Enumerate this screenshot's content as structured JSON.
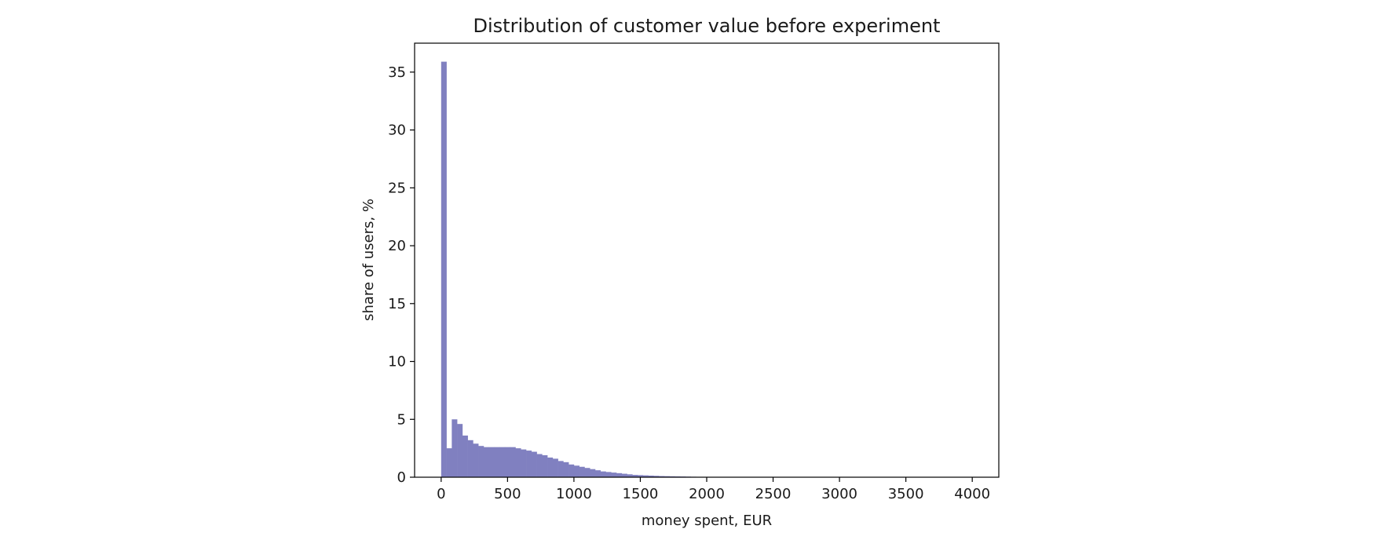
{
  "chart_data": {
    "type": "bar",
    "title": "Distribution of customer value before experiment",
    "xlabel": "money spent, EUR",
    "ylabel": "share of users, %",
    "xlim": [
      -200,
      4200
    ],
    "ylim": [
      0,
      37.5
    ],
    "xticks": [
      0,
      500,
      1000,
      1500,
      2000,
      2500,
      3000,
      3500,
      4000
    ],
    "yticks": [
      0,
      5,
      10,
      15,
      20,
      25,
      30,
      35
    ],
    "grid": false,
    "bin_width": 40,
    "bar_color": "#8080c0",
    "bins_start": [
      0,
      40,
      80,
      120,
      160,
      200,
      240,
      280,
      320,
      360,
      400,
      440,
      480,
      520,
      560,
      600,
      640,
      680,
      720,
      760,
      800,
      840,
      880,
      920,
      960,
      1000,
      1040,
      1080,
      1120,
      1160,
      1200,
      1240,
      1280,
      1320,
      1360,
      1400,
      1440,
      1480,
      1520,
      1560,
      1600,
      1640,
      1680,
      1720,
      1760,
      1800,
      1840,
      1880,
      1920,
      1960
    ],
    "values": [
      35.9,
      2.5,
      5.0,
      4.6,
      3.6,
      3.2,
      2.9,
      2.7,
      2.6,
      2.6,
      2.6,
      2.6,
      2.6,
      2.6,
      2.5,
      2.4,
      2.3,
      2.2,
      2.0,
      1.9,
      1.7,
      1.6,
      1.4,
      1.3,
      1.1,
      1.0,
      0.9,
      0.8,
      0.7,
      0.6,
      0.5,
      0.45,
      0.4,
      0.35,
      0.3,
      0.25,
      0.2,
      0.18,
      0.16,
      0.14,
      0.12,
      0.1,
      0.09,
      0.08,
      0.07,
      0.06,
      0.05,
      0.04,
      0.03,
      0.02
    ]
  }
}
